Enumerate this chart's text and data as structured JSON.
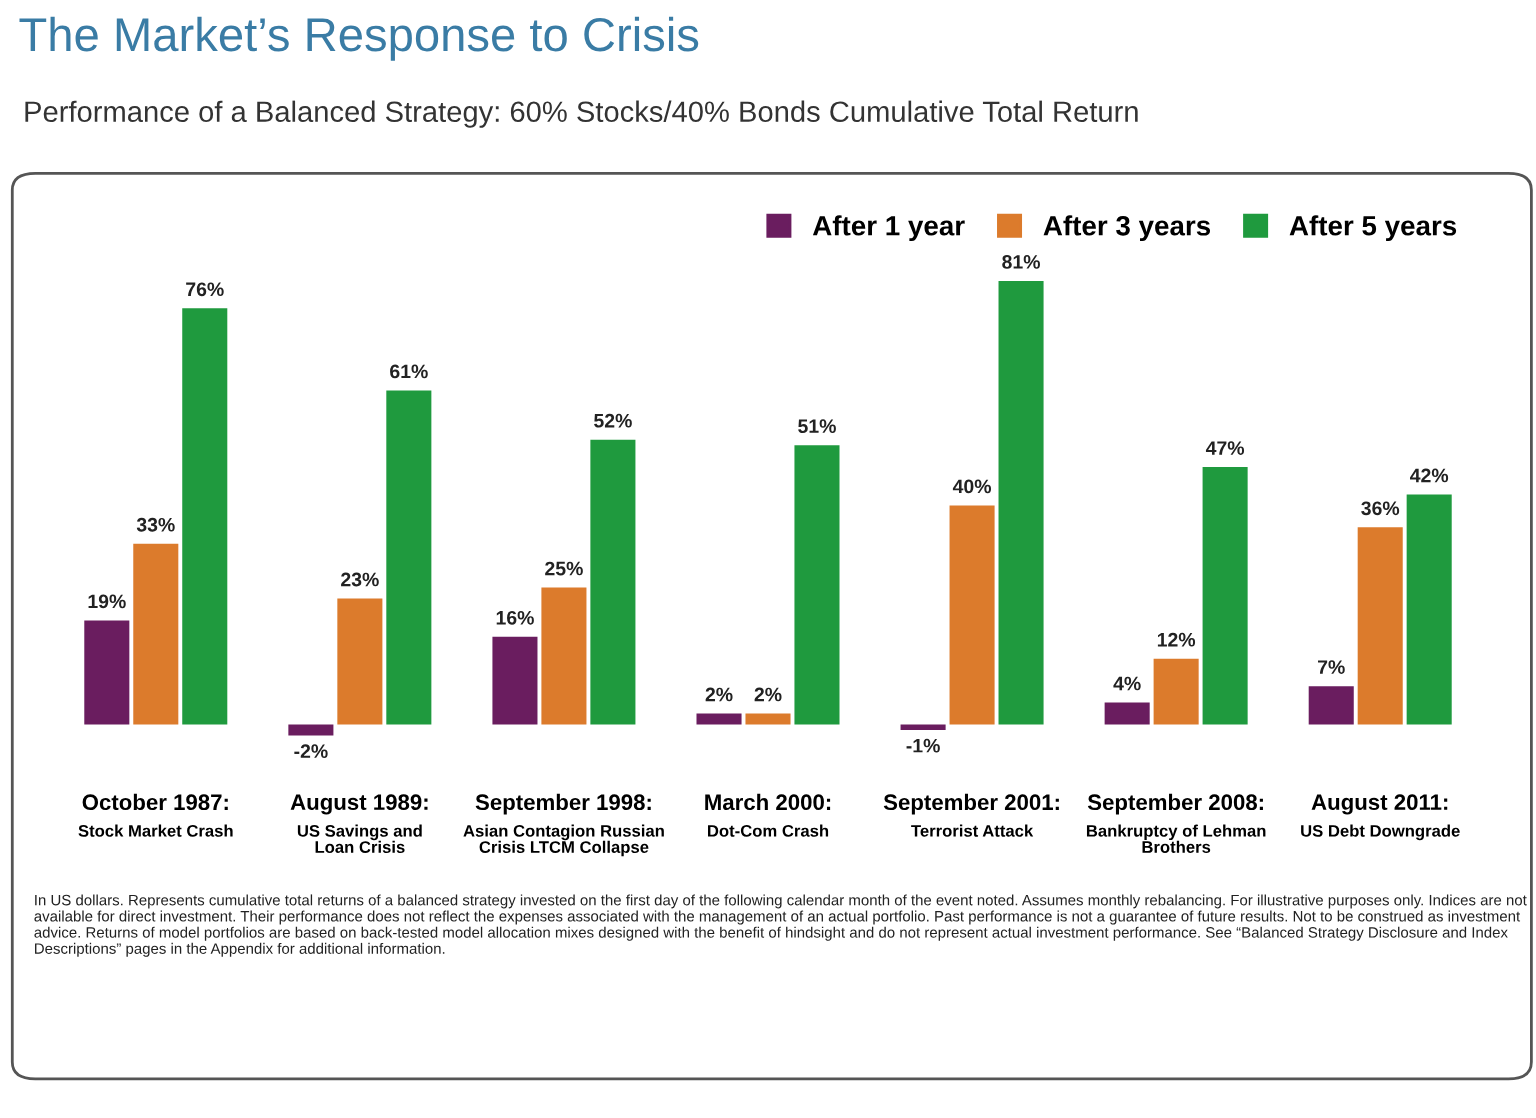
{
  "chart_data": {
    "type": "bar",
    "title": "The Market’s Response to Crisis",
    "subtitle": "Performance of a Balanced Strategy: 60% Stocks/40% Bonds Cumulative Total Return",
    "categories": [
      "October 1987:\nStock Market Crash",
      "August 1989:\nUS Savings and\nLoan Crisis",
      "September 1998:\nAsian Contagion Russian\nCrisis LTCM Collapse",
      "March 2000:\nDot-Com Crash",
      "September 2001:\nTerrorist Attack",
      "September 2008:\nBankruptcy of Lehman\nBrothers",
      "August 2011:\nUS Debt Downgrade"
    ],
    "series": [
      {
        "name": "After 1 year",
        "color": "#6a1d5f",
        "values": [
          19,
          -2,
          16,
          2,
          -1,
          4,
          7
        ],
        "value_labels": [
          "19%",
          "-2%",
          "16%",
          "2%",
          "-1%",
          "4%",
          "7%"
        ]
      },
      {
        "name": "After 3 years",
        "color": "#dc7b2c",
        "values": [
          33,
          23,
          25,
          2,
          40,
          12,
          36
        ],
        "value_labels": [
          "33%",
          "23%",
          "25%",
          "2%",
          "40%",
          "12%",
          "36%"
        ]
      },
      {
        "name": "After 5 years",
        "color": "#1f9a3e",
        "values": [
          76,
          61,
          52,
          51,
          81,
          47,
          42
        ],
        "value_labels": [
          "76%",
          "61%",
          "52%",
          "51%",
          "81%",
          "47%",
          "42%"
        ]
      }
    ],
    "legend": "top right",
    "annotations": [
      "In US dollars. Represents cumulative total returns of a balanced strategy invested on the first day of the following calendar month of the event noted. Assumes monthly rebalancing. For illustrative purposes only. Indices are not available for direct investment. Their performance does not reflect the expenses associated with the management of an actual portfolio. Past performance is not a guarantee of future results. Not to be construed as investment advice. Returns of model portfolios are based on back-tested model allocation mixes designed with the benefit of hindsight and do not represent actual investment performance. See “Balanced Strategy Disclosure and Index Descriptions” pages in the Appendix for additional information."
    ]
  }
}
